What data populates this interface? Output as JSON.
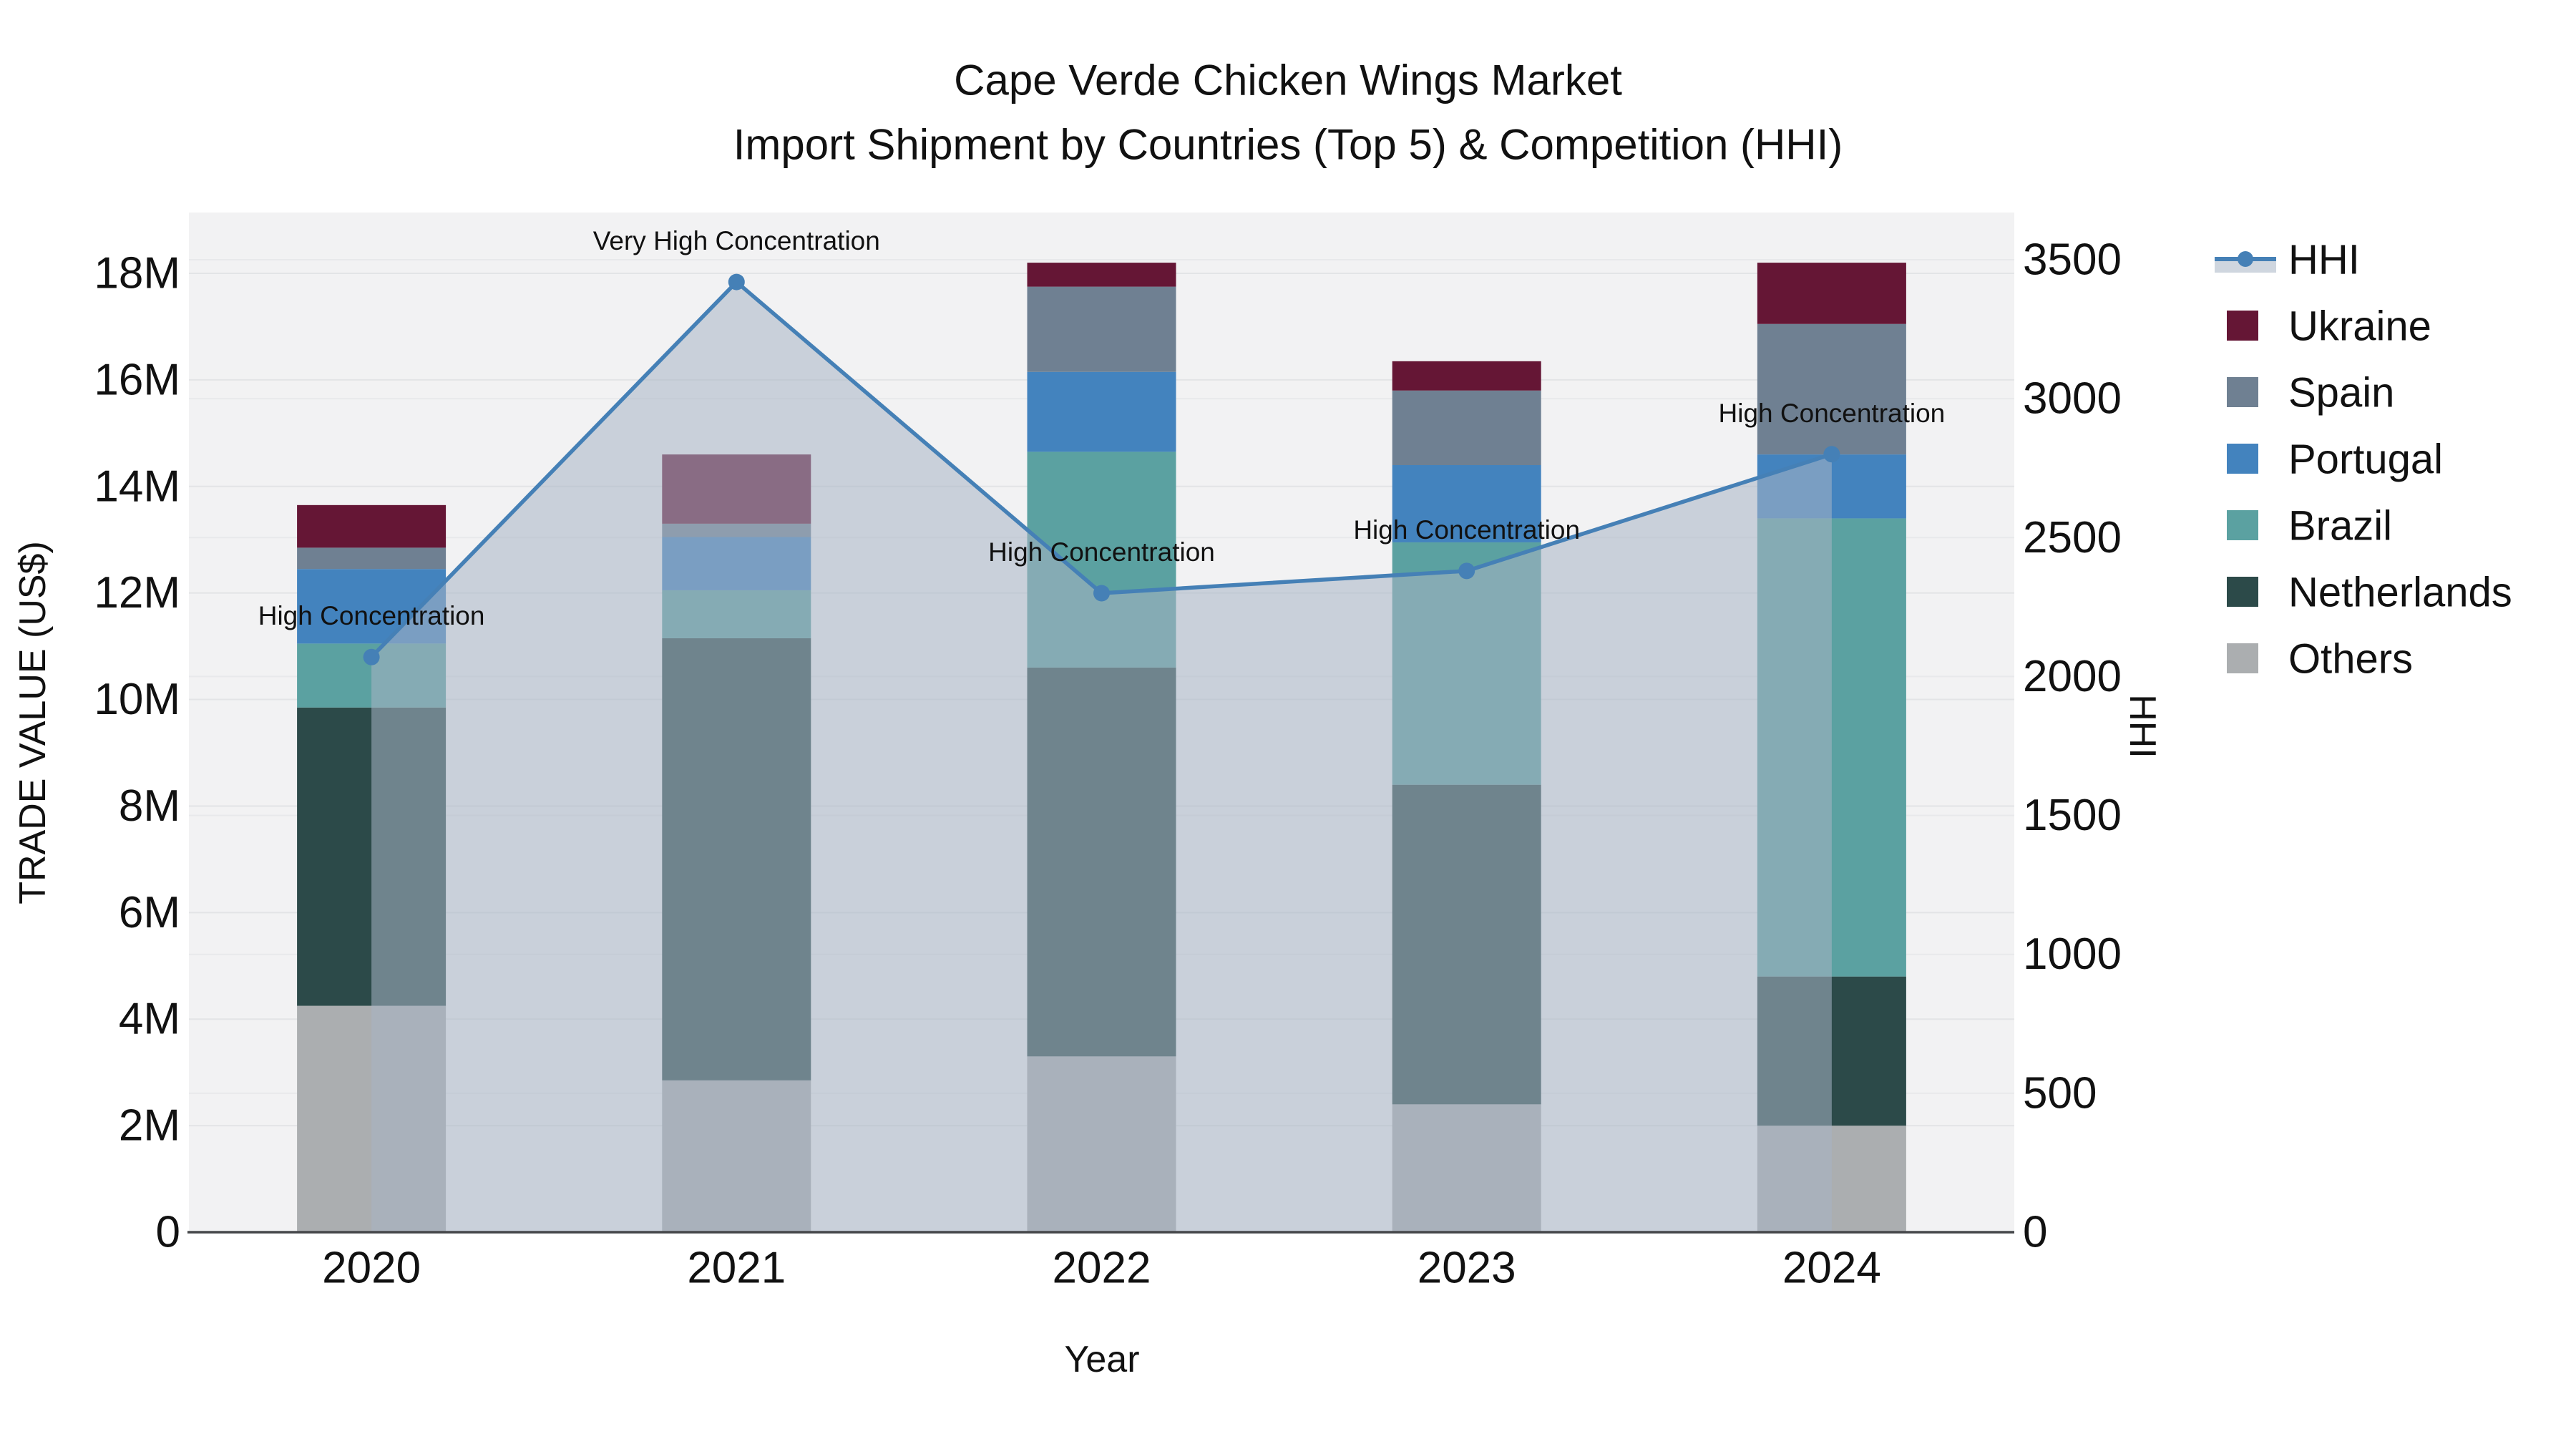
{
  "chart_data": {
    "type": "stacked_bar+line",
    "title": "Cape Verde Chicken Wings Market",
    "subtitle": "Import Shipment by Countries (Top 5) & Competition (HHI)",
    "xlabel": "Year",
    "ylabel_left": "TRADE VALUE (US$)",
    "ylabel_right": "HHI",
    "plot_bg": "#f2f2f3",
    "grid_color_left": "#e3e4e6",
    "grid_color_right": "#e8e9eb",
    "axis_line_color": "#45474a",
    "text_color": "#111111",
    "categories": [
      "2020",
      "2021",
      "2022",
      "2023",
      "2024"
    ],
    "series": [
      {
        "name": "Others",
        "color": "#abaeb0",
        "values": [
          4250000,
          2850000,
          3300000,
          2400000,
          2000000
        ]
      },
      {
        "name": "Netherlands",
        "color": "#2c4a49",
        "values": [
          5600000,
          8300000,
          7300000,
          6000000,
          2800000
        ]
      },
      {
        "name": "Brazil",
        "color": "#5ba1a1",
        "values": [
          1200000,
          900000,
          4050000,
          4550000,
          8600000
        ]
      },
      {
        "name": "Portugal",
        "color": "#4383be",
        "values": [
          1400000,
          1000000,
          1500000,
          1450000,
          1200000
        ]
      },
      {
        "name": "Spain",
        "color": "#6f8092",
        "values": [
          400000,
          250000,
          1600000,
          1400000,
          2450000
        ]
      },
      {
        "name": "Ukraine",
        "color": "#651635",
        "values": [
          800000,
          1300000,
          450000,
          550000,
          1150000
        ]
      }
    ],
    "totals": [
      13650000,
      14600000,
      18200000,
      16350000,
      18200000
    ],
    "hhi": {
      "name": "HHI",
      "color": "#4580b6",
      "fill": "rgba(167,180,197,0.55)",
      "values": [
        2070,
        3420,
        2300,
        2380,
        2800
      ]
    },
    "annotations": [
      "High Concentration",
      "Very High Concentration",
      "High Concentration",
      "High Concentration",
      "High Concentration"
    ],
    "legend": [
      "HHI",
      "Ukraine",
      "Spain",
      "Portugal",
      "Brazil",
      "Netherlands",
      "Others"
    ],
    "y_left": {
      "tick_values": [
        0,
        2000000,
        4000000,
        6000000,
        8000000,
        10000000,
        12000000,
        14000000,
        16000000,
        18000000
      ],
      "tick_labels": [
        "0",
        "2M",
        "4M",
        "6M",
        "8M",
        "10M",
        "12M",
        "14M",
        "16M",
        "18M"
      ],
      "range": [
        0,
        19170000
      ],
      "grid": true
    },
    "y_right": {
      "tick_values": [
        0,
        500,
        1000,
        1500,
        2000,
        2500,
        3000,
        3500
      ],
      "tick_labels": [
        "0",
        "500",
        "1000",
        "1500",
        "2000",
        "2500",
        "3000",
        "3500"
      ],
      "range": [
        0,
        3675
      ],
      "grid": true
    },
    "legend_position": "right"
  }
}
